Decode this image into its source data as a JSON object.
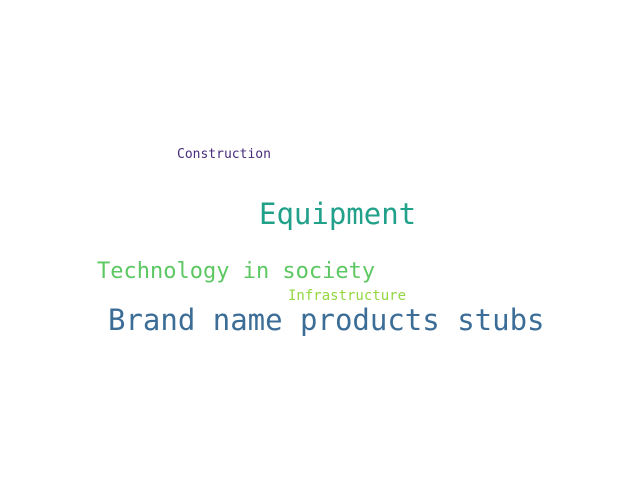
{
  "words": [
    {
      "text": "Construction",
      "color": "#472c7a"
    },
    {
      "text": "Equipment",
      "color": "#21a08a"
    },
    {
      "text": "Technology in society",
      "color": "#5dc863"
    },
    {
      "text": "Infrastructure",
      "color": "#93d741"
    },
    {
      "text": "Brand name products stubs",
      "color": "#3b6d97"
    }
  ]
}
